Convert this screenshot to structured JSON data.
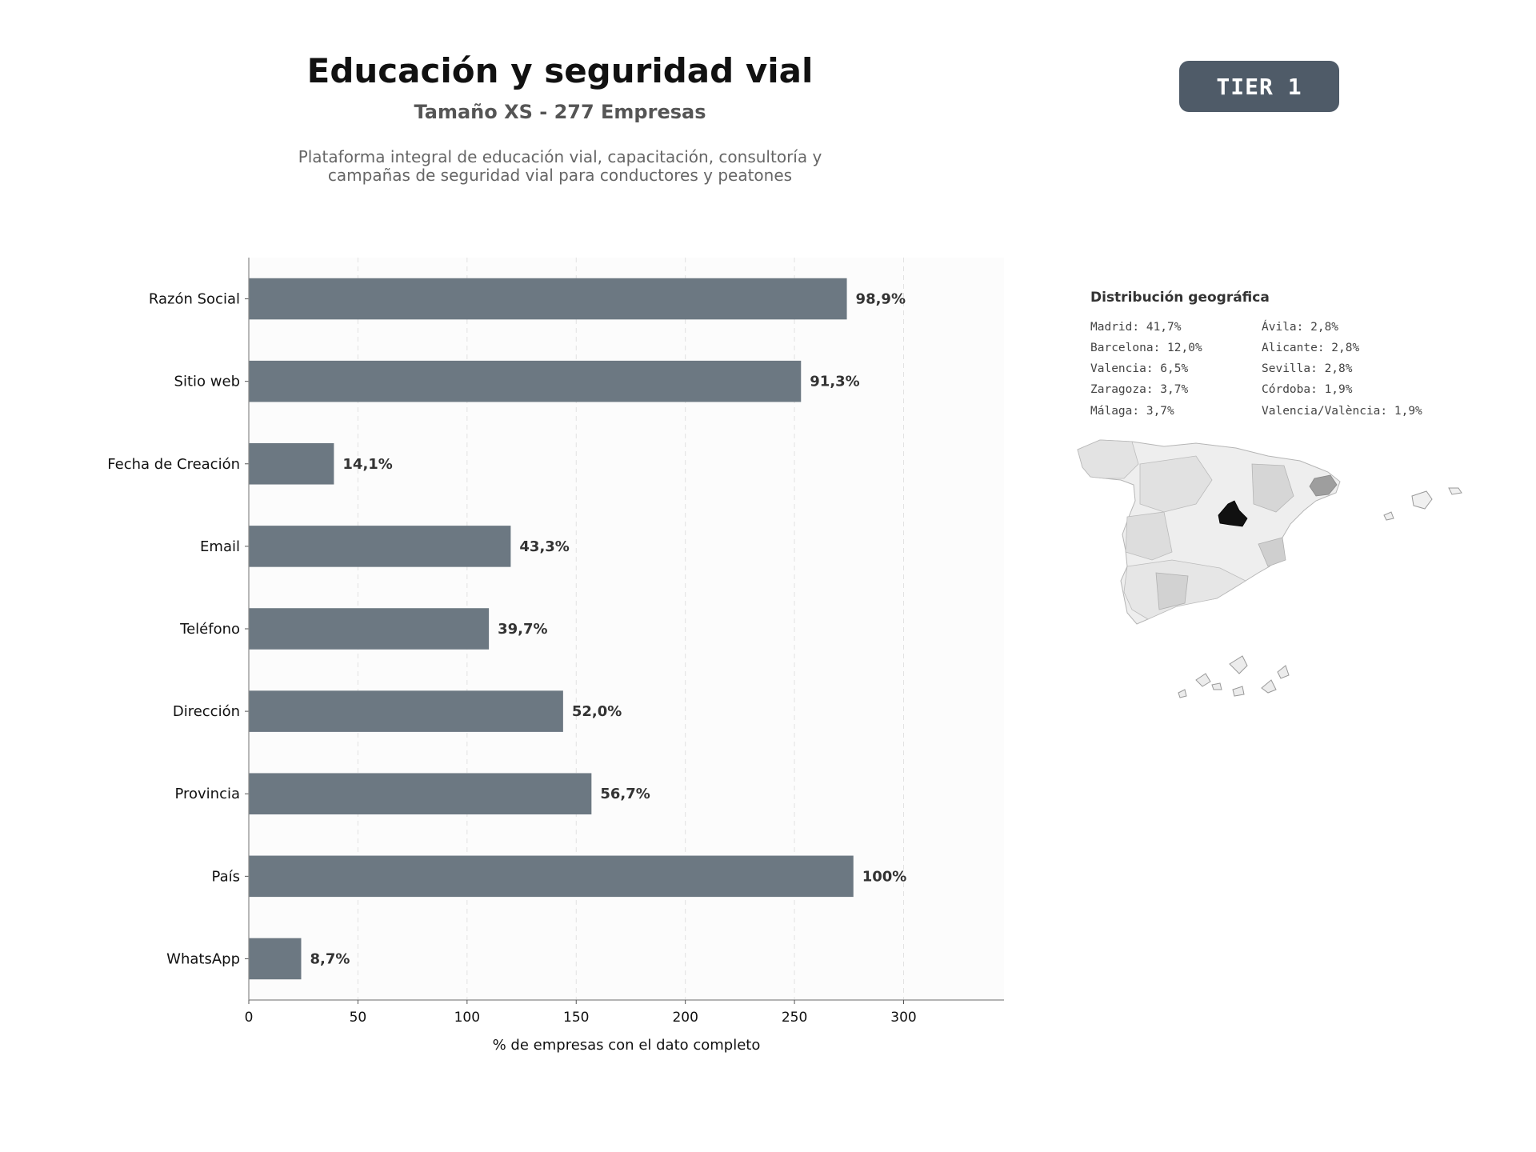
{
  "header": {
    "title": "Educación y seguridad vial",
    "subtitle": "Tamaño XS - 277 Empresas",
    "description_line1": "Plataforma integral de educación vial, capacitación, consultoría y",
    "description_line2": "campañas de seguridad vial para conductores y peatones",
    "badge": "TIER 1"
  },
  "colors": {
    "bar": "#6c7882",
    "badge": "#4f5b68",
    "map_highlight": "#111111",
    "map_secondary": "#9e9e9e"
  },
  "chart_data": {
    "type": "bar",
    "orientation": "horizontal",
    "categories": [
      "Razón Social",
      "Sitio web",
      "Fecha de Creación",
      "Email",
      "Teléfono",
      "Dirección",
      "Provincia",
      "País",
      "WhatsApp"
    ],
    "values": [
      274,
      253,
      39,
      120,
      110,
      144,
      157,
      277,
      24
    ],
    "labels": [
      "98,9%",
      "91,3%",
      "14,1%",
      "43,3%",
      "39,7%",
      "52,0%",
      "56,7%",
      "100%",
      "8,7%"
    ],
    "xlabel": "% de empresas con el dato completo",
    "ylabel": "",
    "xlim": [
      0,
      346
    ],
    "xticks": [
      0,
      50,
      100,
      150,
      200,
      250,
      300
    ],
    "grid": "vertical-dashed"
  },
  "geo": {
    "title": "Distribución geográfica",
    "left_column": [
      "Madrid: 41,7%",
      "Barcelona: 12,0%",
      "Valencia: 6,5%",
      "Zaragoza: 3,7%",
      "Málaga: 3,7%"
    ],
    "right_column": [
      "Ávila: 2,8%",
      "Alicante: 2,8%",
      "Sevilla: 2,8%",
      "Córdoba: 1,9%",
      "Valencia/València: 1,9%"
    ]
  }
}
